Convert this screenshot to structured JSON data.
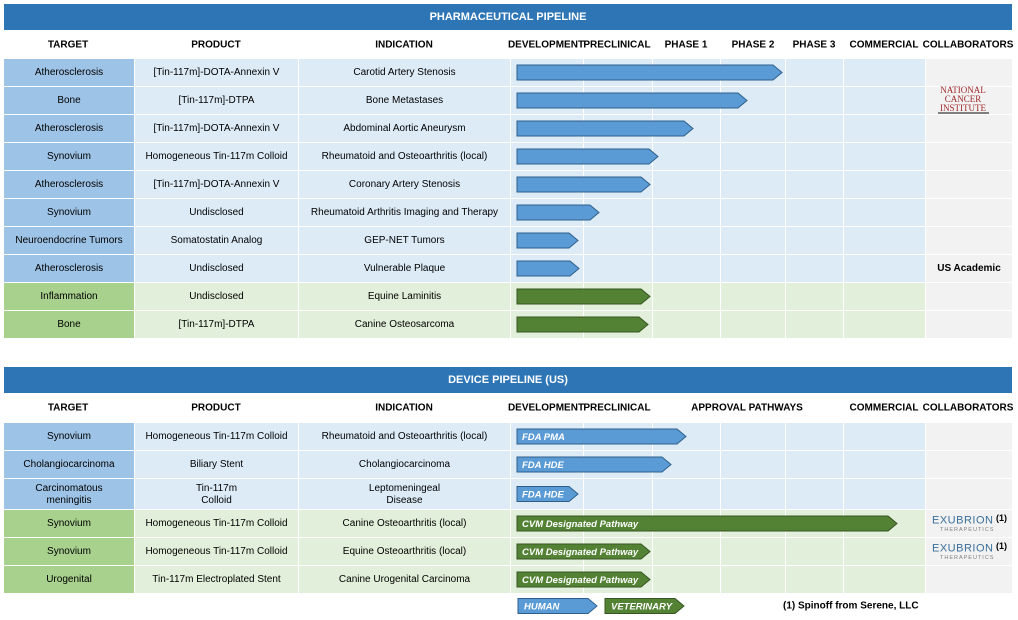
{
  "pharma": {
    "title": "PHARMACEUTICAL PIPELINE",
    "headers": [
      "TARGET",
      "PRODUCT",
      "INDICATION",
      "DEVELOPMENT",
      "PRECLINICAL",
      "PHASE 1",
      "PHASE 2",
      "PHASE 3",
      "COMMERCIAL",
      "COLLABORATORS"
    ],
    "logo": "NATIONAL CANCER INSTITUTE",
    "rows": [
      {
        "target": "Atherosclerosis",
        "product": "[Tin-117m]-DOTA-Annexin V",
        "indication": "Carotid Artery Stenosis"
      },
      {
        "target": "Bone",
        "product": "[Tin-117m]-DTPA",
        "indication": "Bone Metastases"
      },
      {
        "target": "Atherosclerosis",
        "product": "[Tin-117m]-DOTA-Annexin V",
        "indication": "Abdominal Aortic Aneurysm"
      },
      {
        "target": "Synovium",
        "product": "Homogeneous Tin-117m Colloid",
        "indication": "Rheumatoid and Osteoarthritis (local)"
      },
      {
        "target": "Atherosclerosis",
        "product": "[Tin-117m]-DOTA-Annexin V",
        "indication": "Coronary Artery Stenosis"
      },
      {
        "target": "Synovium",
        "product": "Undisclosed",
        "indication": "Rheumatoid Arthritis Imaging and Therapy"
      },
      {
        "target": "Neuroendocrine Tumors",
        "product": "Somatostatin Analog",
        "indication": "GEP-NET Tumors"
      },
      {
        "target": "Atherosclerosis",
        "product": "Undisclosed",
        "indication": "Vulnerable Plaque",
        "collaborator": "US Academic"
      },
      {
        "target": "Inflammation",
        "product": "Undisclosed",
        "indication": "Equine Laminitis"
      },
      {
        "target": "Bone",
        "product": "[Tin-117m]-DTPA",
        "indication": "Canine Osteosarcoma"
      }
    ]
  },
  "device": {
    "title": "DEVICE PIPELINE (US)",
    "headers": [
      "TARGET",
      "PRODUCT",
      "INDICATION",
      "DEVELOPMENT",
      "PRECLINICAL",
      "APPROVAL PATHWAYS",
      "COMMERCIAL",
      "COLLABORATORS"
    ],
    "rows": [
      {
        "target": "Synovium",
        "product": "Homogeneous Tin-117m Colloid",
        "indication": "Rheumatoid and Osteoarthritis (local)",
        "pathway": "FDA PMA"
      },
      {
        "target": "Cholangiocarcinoma",
        "product": "Biliary Stent",
        "indication": "Cholangiocarcinoma",
        "pathway": "FDA HDE"
      },
      {
        "target": "Carcinomatous meningitis",
        "product": "Tin-117m Colloid",
        "indication": "Leptomeningeal Disease",
        "pathway": "FDA HDE"
      },
      {
        "target": "Synovium",
        "product": "Homogeneous Tin-117m Colloid",
        "indication": "Canine Osteoarthritis (local)",
        "pathway": "CVM Designated Pathway",
        "collaborator": {
          "name": "EXUBRION",
          "sub": "THERAPEUTICS",
          "note": "(1)"
        }
      },
      {
        "target": "Synovium",
        "product": "Homogeneous Tin-117m Colloid",
        "indication": "Equine Osteoarthritis (local)",
        "pathway": "CVM Designated Pathway",
        "collaborator": {
          "name": "EXUBRION",
          "sub": "THERAPEUTICS",
          "note": "(1)"
        }
      },
      {
        "target": "Urogenital",
        "product": "Tin-117m Electroplated Stent",
        "indication": "Canine Urogenital Carcinoma",
        "pathway": "CVM Designated Pathway"
      }
    ]
  },
  "legend": {
    "human": "HUMAN",
    "veterinary": "VETERINARY",
    "footnote": "(1) Spinoff from Serene, LLC"
  }
}
